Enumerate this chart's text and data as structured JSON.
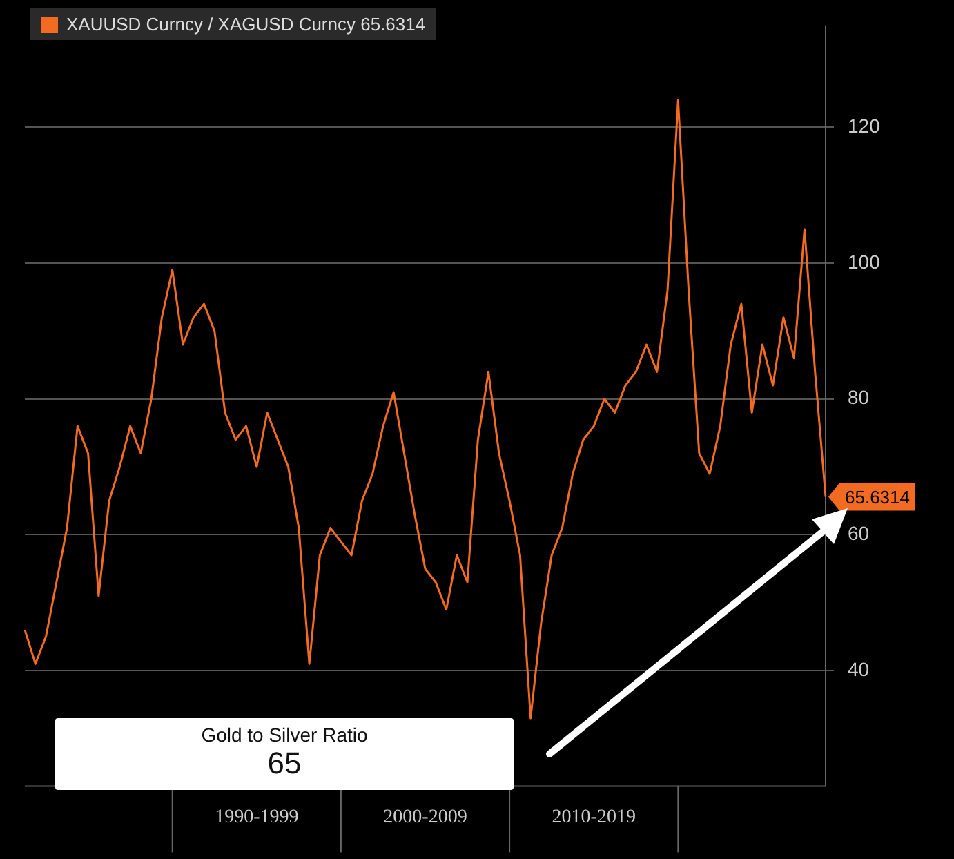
{
  "chart_data": {
    "type": "line",
    "categories": [
      null,
      null,
      null,
      null,
      null,
      null,
      null,
      null,
      null,
      null,
      null,
      null,
      null,
      null,
      null,
      null,
      null,
      null,
      null,
      null,
      null,
      null,
      "1990-1999",
      null,
      null,
      null,
      null,
      null,
      null,
      null,
      null,
      null,
      null,
      null,
      null,
      null,
      null,
      null,
      "2000-2009",
      null,
      null,
      null,
      null,
      null,
      null,
      null,
      null,
      null,
      null,
      null,
      null,
      null,
      null,
      null,
      "2010-2019",
      null,
      null,
      null,
      null,
      null,
      null,
      null,
      null,
      null,
      null,
      null,
      null,
      null,
      null,
      null,
      null,
      null,
      null,
      null,
      null,
      null,
      null
    ],
    "series": [
      {
        "name": "XAUUSD Curncy / XAGUSD Curncy 65.6314",
        "color": "#f26b21",
        "values": [
          46,
          41,
          45,
          53,
          61,
          76,
          72,
          51,
          65,
          70,
          76,
          72,
          80,
          92,
          99,
          88,
          92,
          94,
          90,
          78,
          74,
          76,
          70,
          78,
          74,
          70,
          61,
          41,
          57,
          61,
          59,
          57,
          65,
          69,
          76,
          81,
          72,
          63,
          55,
          53,
          49,
          57,
          53,
          74,
          84,
          72,
          65,
          57,
          33,
          47,
          57,
          61,
          69,
          74,
          76,
          80,
          78,
          82,
          84,
          88,
          84,
          96,
          124,
          96,
          72,
          69,
          76,
          88,
          94,
          78,
          88,
          82,
          92,
          86,
          105,
          84,
          65.6
        ]
      }
    ],
    "ylim": [
      23,
      135
    ],
    "yticks": [
      40,
      60,
      80,
      100,
      120
    ],
    "grid": "y",
    "legend": "top left",
    "annotations": [
      "Gold to Silver Ratio",
      "65",
      "65.6314"
    ]
  }
}
